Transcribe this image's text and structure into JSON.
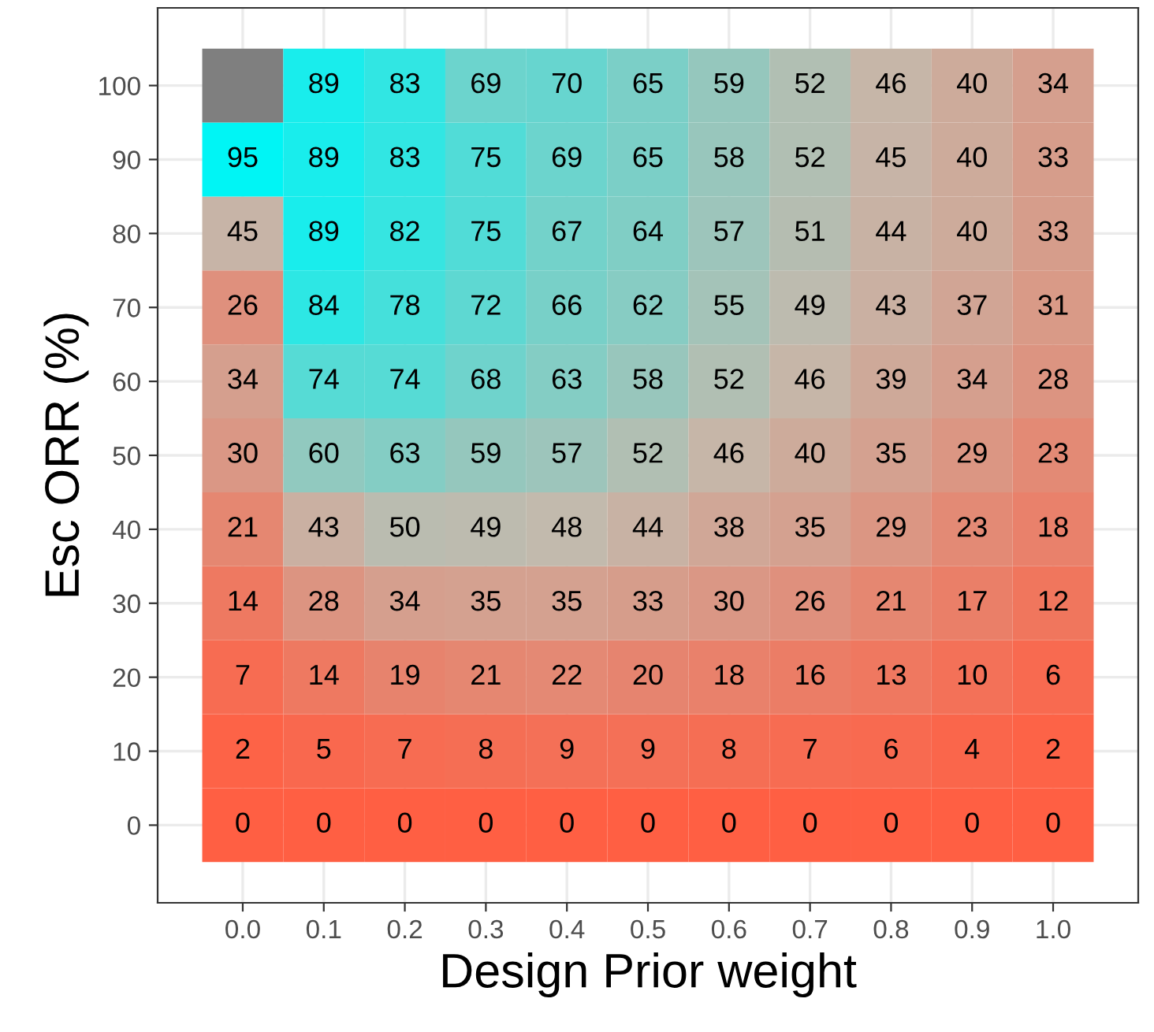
{
  "chart_data": {
    "type": "heatmap",
    "xlabel": "Design Prior weight",
    "ylabel": "Esc ORR (%)",
    "categories": [
      "0.0",
      "0.1",
      "0.2",
      "0.3",
      "0.4",
      "0.5",
      "0.6",
      "0.7",
      "0.8",
      "0.9",
      "1.0"
    ],
    "y_categories": [
      "100",
      "90",
      "80",
      "70",
      "60",
      "50",
      "40",
      "30",
      "20",
      "10",
      "0"
    ],
    "cells": [
      [
        null,
        89,
        83,
        69,
        70,
        65,
        59,
        52,
        46,
        40,
        34
      ],
      [
        95,
        89,
        83,
        75,
        69,
        65,
        58,
        52,
        45,
        40,
        33
      ],
      [
        45,
        89,
        82,
        75,
        67,
        64,
        57,
        51,
        44,
        40,
        33
      ],
      [
        26,
        84,
        78,
        72,
        66,
        62,
        55,
        49,
        43,
        37,
        31
      ],
      [
        34,
        74,
        74,
        68,
        63,
        58,
        52,
        46,
        39,
        34,
        28
      ],
      [
        30,
        60,
        63,
        59,
        57,
        52,
        46,
        40,
        35,
        29,
        23
      ],
      [
        21,
        43,
        50,
        49,
        48,
        44,
        38,
        35,
        29,
        23,
        18
      ],
      [
        14,
        28,
        34,
        35,
        35,
        33,
        30,
        26,
        21,
        17,
        12
      ],
      [
        7,
        14,
        19,
        21,
        22,
        20,
        18,
        16,
        13,
        10,
        6
      ],
      [
        2,
        5,
        7,
        8,
        9,
        9,
        8,
        7,
        6,
        4,
        2
      ],
      [
        0,
        0,
        0,
        0,
        0,
        0,
        0,
        0,
        0,
        0,
        0
      ]
    ],
    "colors": [
      "#ff5f43",
      "#c4b9ac",
      "#00f5f5"
    ],
    "data_labels": true,
    "grid": true,
    "legend": false
  }
}
